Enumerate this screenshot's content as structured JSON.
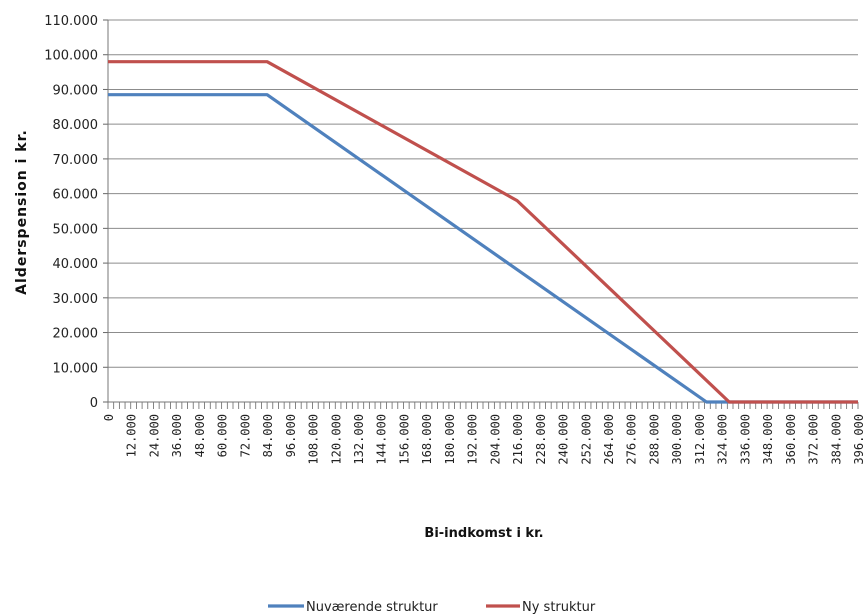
{
  "chart_data": {
    "type": "line",
    "xlabel": "Bi-indkomst i kr.",
    "ylabel": "Alderspension i kr.",
    "ylim": [
      0,
      110000
    ],
    "y_ticks": [
      "0",
      "10.000",
      "20.000",
      "30.000",
      "40.000",
      "50.000",
      "60.000",
      "70.000",
      "80.000",
      "90.000",
      "100.000",
      "110.000"
    ],
    "xlim": [
      0,
      396000
    ],
    "x_ticks": [
      "0",
      "12.000",
      "24.000",
      "36.000",
      "48.000",
      "60.000",
      "72.000",
      "84.000",
      "96.000",
      "108.000",
      "120.000",
      "132.000",
      "144.000",
      "156.000",
      "168.000",
      "180.000",
      "192.000",
      "204.000",
      "216.000",
      "228.000",
      "240.000",
      "252.000",
      "264.000",
      "276.000",
      "288.000",
      "300.000",
      "312.000",
      "324.000",
      "336.000",
      "348.000",
      "360.000",
      "372.000",
      "384.000",
      "396.000"
    ],
    "grid": "horizontal",
    "legend_position": "bottom",
    "series": [
      {
        "name": "Nuværende struktur",
        "color": "#4f81bd",
        "points": [
          [
            0,
            88500
          ],
          [
            84000,
            88500
          ],
          [
            316000,
            0
          ],
          [
            396000,
            0
          ]
        ]
      },
      {
        "name": "Ny struktur",
        "color": "#c0504d",
        "points": [
          [
            0,
            98000
          ],
          [
            84000,
            98000
          ],
          [
            216000,
            58000
          ],
          [
            328000,
            0
          ],
          [
            396000,
            0
          ]
        ]
      }
    ]
  }
}
